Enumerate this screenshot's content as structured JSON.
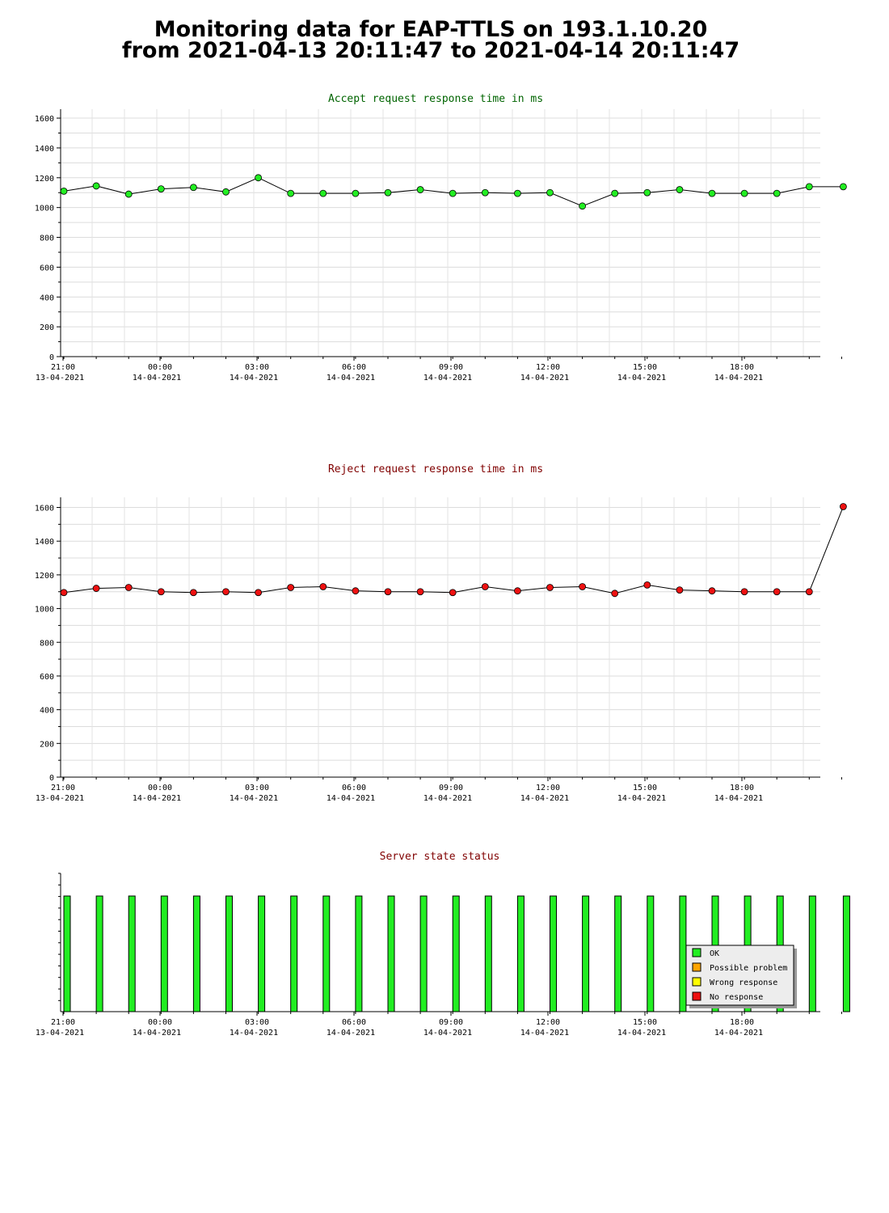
{
  "page": {
    "title_line1": "Monitoring data for EAP-TTLS on 193.1.10.20",
    "title_line2": "from 2021-04-13 20:11:47 to 2021-04-14 20:11:47"
  },
  "colors": {
    "accept_title": "#006400",
    "reject_title": "#800000",
    "status_title": "#800000",
    "accept_marker": "#22ee22",
    "reject_marker": "#ee1111",
    "ok": "#22ee22",
    "possible_problem": "#ffa500",
    "wrong_response": "#ffff00",
    "no_response": "#ee1111"
  },
  "chart_data": [
    {
      "type": "line",
      "title": "Accept request response time in ms",
      "x_ticks": [
        {
          "time": "21:00",
          "date": "13-04-2021"
        },
        {
          "time": "00:00",
          "date": "14-04-2021"
        },
        {
          "time": "03:00",
          "date": "14-04-2021"
        },
        {
          "time": "06:00",
          "date": "14-04-2021"
        },
        {
          "time": "09:00",
          "date": "14-04-2021"
        },
        {
          "time": "12:00",
          "date": "14-04-2021"
        },
        {
          "time": "15:00",
          "date": "14-04-2021"
        },
        {
          "time": "18:00",
          "date": "14-04-2021"
        }
      ],
      "y_ticks": [
        "0",
        "200",
        "400",
        "600",
        "800",
        "1000",
        "1200",
        "1400",
        "1600"
      ],
      "ylim": [
        0,
        1660
      ],
      "grid": true,
      "x": [
        "2021-04-13 20:11",
        "2021-04-13 21:11",
        "2021-04-13 22:11",
        "2021-04-13 23:11",
        "2021-04-14 00:11",
        "2021-04-14 01:11",
        "2021-04-14 02:11",
        "2021-04-14 03:11",
        "2021-04-14 04:11",
        "2021-04-14 05:11",
        "2021-04-14 06:11",
        "2021-04-14 07:11",
        "2021-04-14 08:11",
        "2021-04-14 09:11",
        "2021-04-14 10:11",
        "2021-04-14 11:11",
        "2021-04-14 12:11",
        "2021-04-14 13:11",
        "2021-04-14 14:11",
        "2021-04-14 15:11",
        "2021-04-14 16:11",
        "2021-04-14 17:11",
        "2021-04-14 18:11",
        "2021-04-14 19:11",
        "2021-04-14 20:11"
      ],
      "values": [
        1110,
        1145,
        1090,
        1125,
        1135,
        1105,
        1200,
        1095,
        1095,
        1095,
        1100,
        1120,
        1095,
        1100,
        1095,
        1100,
        1010,
        1095,
        1100,
        1120,
        1095,
        1095,
        1095,
        1140,
        1140
      ]
    },
    {
      "type": "line",
      "title": "Reject request response time in ms",
      "x_ticks": [
        {
          "time": "21:00",
          "date": "13-04-2021"
        },
        {
          "time": "00:00",
          "date": "14-04-2021"
        },
        {
          "time": "03:00",
          "date": "14-04-2021"
        },
        {
          "time": "06:00",
          "date": "14-04-2021"
        },
        {
          "time": "09:00",
          "date": "14-04-2021"
        },
        {
          "time": "12:00",
          "date": "14-04-2021"
        },
        {
          "time": "15:00",
          "date": "14-04-2021"
        },
        {
          "time": "18:00",
          "date": "14-04-2021"
        }
      ],
      "y_ticks": [
        "0",
        "200",
        "400",
        "600",
        "800",
        "1000",
        "1200",
        "1400",
        "1600"
      ],
      "ylim": [
        0,
        1660
      ],
      "grid": true,
      "x": [
        "2021-04-13 20:11",
        "2021-04-13 21:11",
        "2021-04-13 22:11",
        "2021-04-13 23:11",
        "2021-04-14 00:11",
        "2021-04-14 01:11",
        "2021-04-14 02:11",
        "2021-04-14 03:11",
        "2021-04-14 04:11",
        "2021-04-14 05:11",
        "2021-04-14 06:11",
        "2021-04-14 07:11",
        "2021-04-14 08:11",
        "2021-04-14 09:11",
        "2021-04-14 10:11",
        "2021-04-14 11:11",
        "2021-04-14 12:11",
        "2021-04-14 13:11",
        "2021-04-14 14:11",
        "2021-04-14 15:11",
        "2021-04-14 16:11",
        "2021-04-14 17:11",
        "2021-04-14 18:11",
        "2021-04-14 19:11",
        "2021-04-14 20:11"
      ],
      "values": [
        1095,
        1120,
        1125,
        1100,
        1095,
        1100,
        1095,
        1125,
        1130,
        1105,
        1100,
        1100,
        1095,
        1130,
        1105,
        1125,
        1130,
        1090,
        1140,
        1110,
        1105,
        1100,
        1100,
        1100,
        1605
      ]
    },
    {
      "type": "bar",
      "title": "Server state status",
      "x_ticks": [
        {
          "time": "21:00",
          "date": "13-04-2021"
        },
        {
          "time": "00:00",
          "date": "14-04-2021"
        },
        {
          "time": "03:00",
          "date": "14-04-2021"
        },
        {
          "time": "06:00",
          "date": "14-04-2021"
        },
        {
          "time": "09:00",
          "date": "14-04-2021"
        },
        {
          "time": "12:00",
          "date": "14-04-2021"
        },
        {
          "time": "15:00",
          "date": "14-04-2021"
        },
        {
          "time": "18:00",
          "date": "14-04-2021"
        }
      ],
      "x": [
        "2021-04-13 20:11",
        "2021-04-13 21:11",
        "2021-04-13 22:11",
        "2021-04-13 23:11",
        "2021-04-14 00:11",
        "2021-04-14 01:11",
        "2021-04-14 02:11",
        "2021-04-14 03:11",
        "2021-04-14 04:11",
        "2021-04-14 05:11",
        "2021-04-14 06:11",
        "2021-04-14 07:11",
        "2021-04-14 08:11",
        "2021-04-14 09:11",
        "2021-04-14 10:11",
        "2021-04-14 11:11",
        "2021-04-14 12:11",
        "2021-04-14 13:11",
        "2021-04-14 14:11",
        "2021-04-14 15:11",
        "2021-04-14 16:11",
        "2021-04-14 17:11",
        "2021-04-14 18:11",
        "2021-04-14 19:11",
        "2021-04-14 20:11"
      ],
      "states": [
        "OK",
        "OK",
        "OK",
        "OK",
        "OK",
        "OK",
        "OK",
        "OK",
        "OK",
        "OK",
        "OK",
        "OK",
        "OK",
        "OK",
        "OK",
        "OK",
        "OK",
        "OK",
        "OK",
        "OK",
        "OK",
        "OK",
        "OK",
        "OK",
        "OK"
      ],
      "legend": {
        "placement": "bottom-right",
        "entries": [
          {
            "label": "OK",
            "color": "#22ee22"
          },
          {
            "label": "Possible problem",
            "color": "#ffa500"
          },
          {
            "label": "Wrong response",
            "color": "#ffff00"
          },
          {
            "label": "No response",
            "color": "#ee1111"
          }
        ]
      }
    }
  ]
}
